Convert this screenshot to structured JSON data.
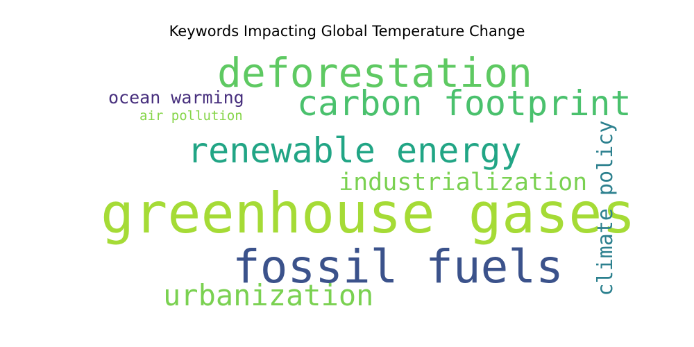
{
  "title": "Keywords Impacting Global Temperature Change",
  "words": [
    {
      "text": "greenhouse gases",
      "color": "#a5db36"
    },
    {
      "text": "fossil fuels",
      "color": "#3b528b"
    },
    {
      "text": "deforestation",
      "color": "#5ec962"
    },
    {
      "text": "carbon footprint",
      "color": "#4ac16d"
    },
    {
      "text": "renewable energy",
      "color": "#21a585"
    },
    {
      "text": "urbanization",
      "color": "#7ad151"
    },
    {
      "text": "industrialization",
      "color": "#7ad151"
    },
    {
      "text": "climate policy",
      "color": "#2c808e"
    },
    {
      "text": "ocean warming",
      "color": "#472f7d"
    },
    {
      "text": "air pollution",
      "color": "#86d549"
    }
  ]
}
